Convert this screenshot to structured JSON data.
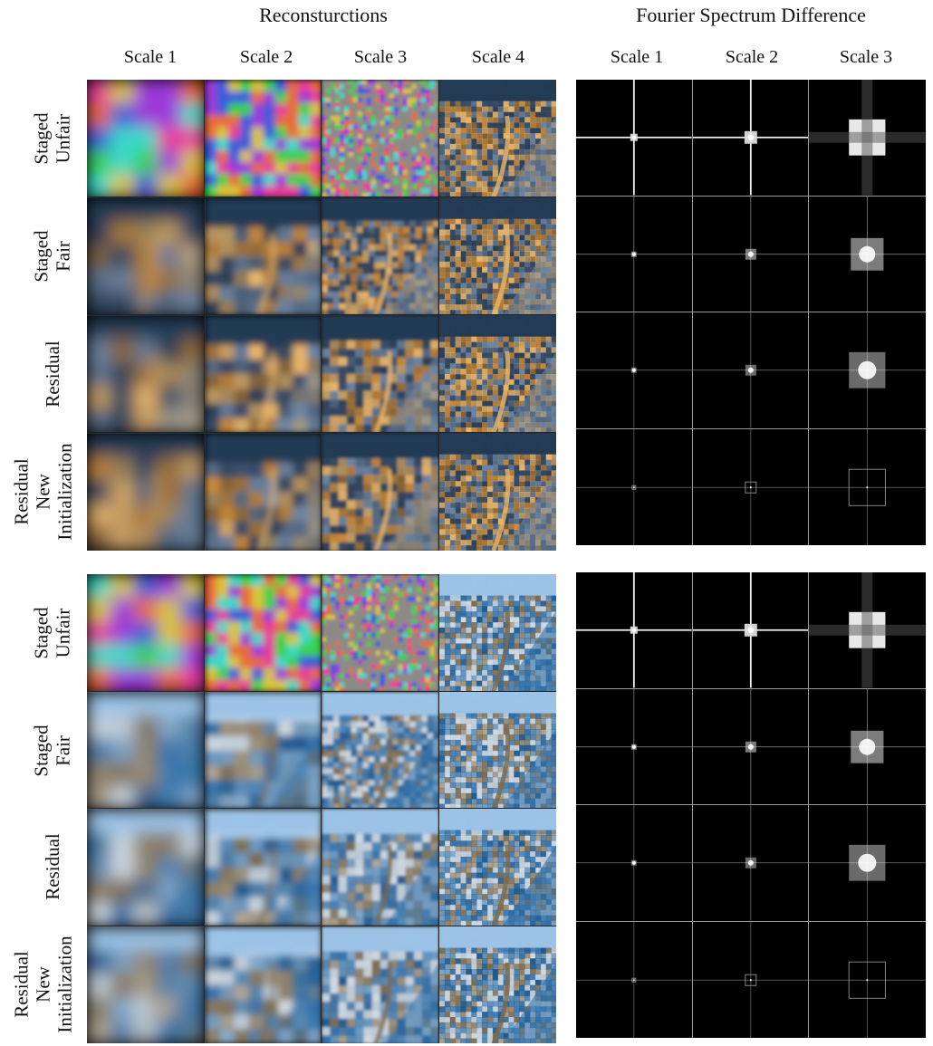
{
  "headers": {
    "left": "Reconsturctions",
    "right": "Fourier Spectrum Difference"
  },
  "recon_columns": [
    "Scale 1",
    "Scale 2",
    "Scale 3",
    "Scale 4"
  ],
  "spectrum_columns": [
    "Scale 1",
    "Scale 2",
    "Scale 3"
  ],
  "row_labels": [
    [
      "Staged",
      "Unfair"
    ],
    [
      "Staged",
      "Fair"
    ],
    [
      "Residual"
    ],
    [
      "Residual",
      "New",
      "Initialization"
    ]
  ],
  "panels": [
    {
      "scene": "night-city-tower-icon",
      "palette": [
        "#1b2a3a",
        "#3a4f6a",
        "#6f86a3",
        "#c98a3a",
        "#e9b56b",
        "#243b55"
      ]
    },
    {
      "scene": "coastal-village-icon",
      "palette": [
        "#f2f2f0",
        "#b9c7d4",
        "#2f6fa8",
        "#1f5a8f",
        "#7a6a4f",
        "#9cc3e6"
      ]
    }
  ],
  "noise_palettes": {
    "unfair": [
      "#e83d9b",
      "#3ad14a",
      "#3b5bdc",
      "#d9c43a",
      "#9b3ad9",
      "#3ad9c8",
      "#e86a3a"
    ]
  }
}
